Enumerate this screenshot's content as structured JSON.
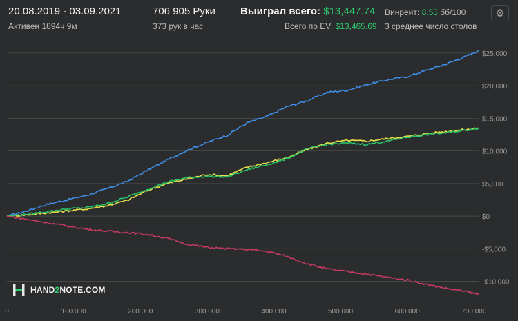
{
  "header": {
    "date_range": "20.08.2019 - 03.09.2021",
    "active": "Активен 1894ч 9м",
    "hands": "706 905 Руки",
    "hands_per_hour": "373 рук в час",
    "won_label": "Выиграл всего:",
    "won_value": "$13,447.74",
    "ev_label": "Всего по EV:",
    "ev_value": "$13,465.69",
    "winrate_label": "Винрейт:",
    "winrate_value": "8.53",
    "winrate_unit": "бб/100",
    "tables": "3 среднее число столов",
    "settings_icon": "gear-icon"
  },
  "logo": {
    "text_a": "HAND",
    "text_b": "2",
    "text_c": "NOTE.COM",
    "icon": "h2n-logo-icon"
  },
  "colors": {
    "background": "#2b2c2d",
    "grid": "#4b4c4d",
    "axis_text": "#9a9a9a",
    "accent_green": "#2ecc71",
    "all_in_ev": "#3f8ee8",
    "net_won": "#e6e04a",
    "ev_line": "#27c46b",
    "non_showdown": "#c73b62"
  },
  "chart_data": {
    "type": "line",
    "x_ticks": [
      0,
      100000,
      200000,
      300000,
      400000,
      500000,
      600000,
      700000
    ],
    "x_tick_labels": [
      "0",
      "100 000",
      "200 000",
      "300 000",
      "400 000",
      "500 000",
      "600 000",
      "700 000"
    ],
    "y_ticks": [
      25000,
      20000,
      15000,
      10000,
      5000,
      0,
      -5000,
      -10000
    ],
    "y_tick_labels": [
      "$25,000",
      "$20,000",
      "$15,000",
      "$10,000",
      "$5,000",
      "$0",
      "-$5,000",
      "-$10,000"
    ],
    "xlim": [
      0,
      706905
    ],
    "ylim": [
      -12800,
      27000
    ],
    "grid": true,
    "series": [
      {
        "color_key": "all_in_ev",
        "x": [
          0,
          30000,
          60000,
          90000,
          120000,
          150000,
          180000,
          210000,
          240000,
          270000,
          300000,
          330000,
          360000,
          390000,
          420000,
          450000,
          480000,
          510000,
          540000,
          570000,
          600000,
          630000,
          660000,
          690000,
          706905
        ],
        "y": [
          0,
          800,
          1800,
          2500,
          3200,
          4200,
          5300,
          7000,
          8600,
          10100,
          11300,
          12400,
          14300,
          15300,
          16800,
          17700,
          19000,
          19300,
          20200,
          20900,
          21400,
          22400,
          23400,
          24600,
          25400
        ]
      },
      {
        "color_key": "net_won",
        "x": [
          0,
          30000,
          60000,
          90000,
          120000,
          150000,
          180000,
          210000,
          240000,
          270000,
          300000,
          330000,
          360000,
          390000,
          420000,
          450000,
          480000,
          510000,
          540000,
          570000,
          600000,
          630000,
          660000,
          690000,
          706905
        ],
        "y": [
          0,
          200,
          500,
          800,
          1100,
          1600,
          2400,
          3900,
          5000,
          5700,
          6400,
          6200,
          7500,
          8200,
          9000,
          10200,
          11200,
          11600,
          11500,
          11900,
          12200,
          12700,
          13000,
          13300,
          13448
        ]
      },
      {
        "color_key": "ev_line",
        "x": [
          0,
          30000,
          60000,
          90000,
          120000,
          150000,
          180000,
          210000,
          240000,
          270000,
          300000,
          330000,
          360000,
          390000,
          420000,
          450000,
          480000,
          510000,
          540000,
          570000,
          600000,
          630000,
          660000,
          690000,
          706905
        ],
        "y": [
          0,
          300,
          700,
          1100,
          1300,
          1900,
          2900,
          4100,
          5200,
          5900,
          6100,
          6000,
          7100,
          7900,
          8800,
          10300,
          11000,
          11200,
          11000,
          11500,
          12100,
          12500,
          12800,
          13200,
          13466
        ]
      },
      {
        "color_key": "non_showdown",
        "x": [
          0,
          30000,
          60000,
          90000,
          120000,
          150000,
          180000,
          210000,
          240000,
          270000,
          300000,
          330000,
          360000,
          390000,
          420000,
          450000,
          480000,
          510000,
          540000,
          570000,
          600000,
          630000,
          660000,
          690000,
          706905
        ],
        "y": [
          0,
          -500,
          -1000,
          -1500,
          -2000,
          -2300,
          -2500,
          -2800,
          -3400,
          -4300,
          -4800,
          -5000,
          -5100,
          -5400,
          -6200,
          -7300,
          -8100,
          -8500,
          -8900,
          -9400,
          -9800,
          -10500,
          -11100,
          -11600,
          -12000
        ]
      }
    ]
  }
}
